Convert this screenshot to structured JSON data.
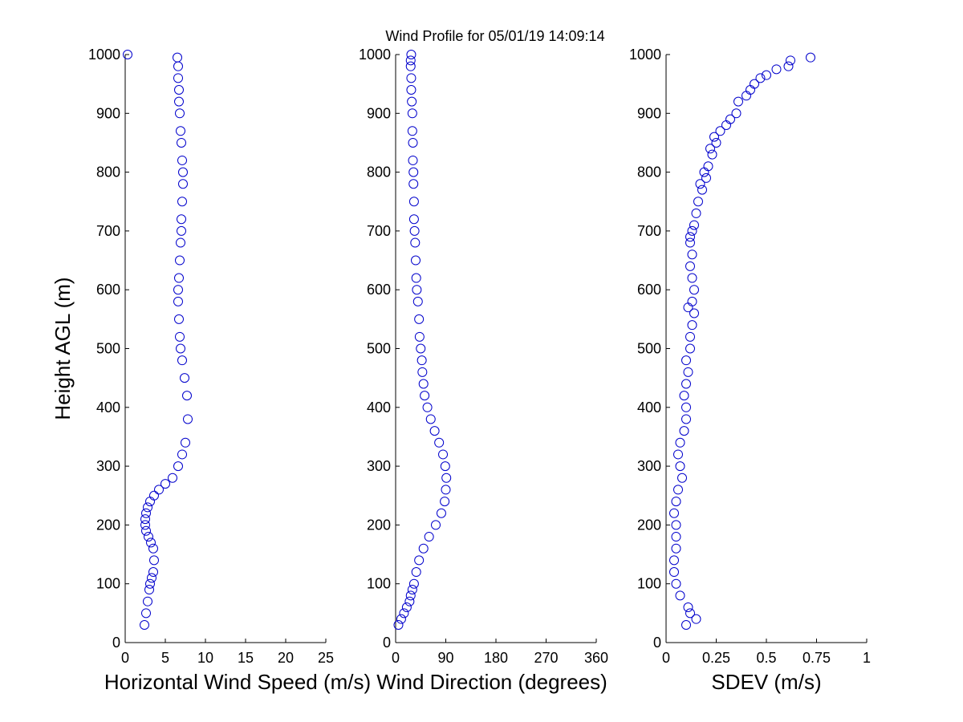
{
  "title": "Wind Profile for  05/01/19 14:09:14",
  "colors": {
    "marker": "#0000cc",
    "axis": "#000000"
  },
  "chart_data": [
    {
      "type": "scatter",
      "xlabel": "Horizontal Wind Speed (m/s)",
      "ylabel": "Height AGL (m)",
      "xlim": [
        0,
        25
      ],
      "ylim": [
        0,
        1000
      ],
      "xticks": [
        0,
        5,
        10,
        15,
        20,
        25
      ],
      "yticks": [
        0,
        100,
        200,
        300,
        400,
        500,
        600,
        700,
        800,
        900,
        1000
      ],
      "grid": false,
      "series": [
        {
          "x": [
            2.4,
            2.6,
            2.8,
            3.0,
            3.1,
            3.3,
            3.5,
            3.6,
            3.5,
            3.2,
            2.9,
            2.6,
            2.5,
            2.5,
            2.6,
            2.8,
            3.1,
            3.6,
            4.2,
            5.0,
            5.9,
            6.6,
            7.1,
            7.5,
            7.8,
            7.7,
            7.4,
            7.1,
            6.9,
            6.8,
            6.7,
            6.6,
            6.6,
            6.7,
            6.8,
            6.9,
            7.0,
            7.0,
            7.1,
            7.2,
            7.2,
            7.1,
            7.0,
            6.9,
            6.8,
            6.7,
            6.7,
            6.6,
            6.6,
            6.5,
            0.3
          ],
          "y": [
            30,
            50,
            70,
            90,
            100,
            110,
            120,
            140,
            160,
            170,
            180,
            190,
            200,
            210,
            220,
            230,
            240,
            250,
            260,
            270,
            280,
            300,
            320,
            340,
            380,
            420,
            450,
            480,
            500,
            520,
            550,
            580,
            600,
            620,
            650,
            680,
            700,
            720,
            750,
            780,
            800,
            820,
            850,
            870,
            900,
            920,
            940,
            960,
            980,
            995,
            1000
          ]
        }
      ]
    },
    {
      "type": "scatter",
      "xlabel": "Wind Direction (degrees)",
      "ylabel": "",
      "xlim": [
        0,
        360
      ],
      "ylim": [
        0,
        1000
      ],
      "xticks": [
        0,
        90,
        180,
        270,
        360
      ],
      "yticks": [
        0,
        100,
        200,
        300,
        400,
        500,
        600,
        700,
        800,
        900,
        1000
      ],
      "grid": false,
      "series": [
        {
          "x": [
            5,
            10,
            15,
            20,
            25,
            27,
            30,
            33,
            37,
            42,
            50,
            60,
            72,
            82,
            88,
            90,
            91,
            89,
            85,
            78,
            70,
            63,
            57,
            52,
            50,
            48,
            47,
            45,
            43,
            42,
            40,
            38,
            37,
            36,
            35,
            34,
            33,
            33,
            32,
            32,
            31,
            31,
            30,
            30,
            29,
            28,
            28,
            27,
            27,
            28
          ],
          "y": [
            30,
            40,
            50,
            60,
            70,
            80,
            90,
            100,
            120,
            140,
            160,
            180,
            200,
            220,
            240,
            260,
            280,
            300,
            320,
            340,
            360,
            380,
            400,
            420,
            440,
            460,
            480,
            500,
            520,
            550,
            580,
            600,
            620,
            650,
            680,
            700,
            720,
            750,
            780,
            800,
            820,
            850,
            870,
            900,
            920,
            940,
            960,
            980,
            990,
            1000
          ]
        }
      ]
    },
    {
      "type": "scatter",
      "xlabel": "SDEV  (m/s)",
      "ylabel": "",
      "xlim": [
        0,
        1
      ],
      "ylim": [
        0,
        1000
      ],
      "xticks": [
        0,
        0.25,
        0.5,
        0.75,
        1
      ],
      "tick_labels": [
        "0",
        "0.25",
        "0.5",
        "0.75",
        "1"
      ],
      "yticks": [
        0,
        100,
        200,
        300,
        400,
        500,
        600,
        700,
        800,
        900,
        1000
      ],
      "grid": false,
      "series": [
        {
          "x": [
            0.1,
            0.15,
            0.12,
            0.11,
            0.07,
            0.05,
            0.04,
            0.04,
            0.05,
            0.05,
            0.05,
            0.04,
            0.05,
            0.06,
            0.08,
            0.07,
            0.06,
            0.07,
            0.09,
            0.1,
            0.1,
            0.09,
            0.1,
            0.11,
            0.1,
            0.12,
            0.12,
            0.13,
            0.14,
            0.13,
            0.14,
            0.13,
            0.12,
            0.13,
            0.11,
            0.12,
            0.13,
            0.12,
            0.14,
            0.15,
            0.16,
            0.18,
            0.17,
            0.2,
            0.19,
            0.21,
            0.23,
            0.22,
            0.25,
            0.27,
            0.24,
            0.3,
            0.32,
            0.35,
            0.36,
            0.4,
            0.42,
            0.44,
            0.47,
            0.5,
            0.55,
            0.61,
            0.62,
            0.72
          ],
          "y": [
            30,
            40,
            50,
            60,
            80,
            100,
            120,
            140,
            160,
            180,
            200,
            220,
            240,
            260,
            280,
            300,
            320,
            340,
            360,
            380,
            400,
            420,
            440,
            460,
            480,
            500,
            520,
            540,
            560,
            580,
            600,
            620,
            640,
            660,
            570,
            680,
            700,
            690,
            710,
            730,
            750,
            770,
            780,
            790,
            800,
            810,
            830,
            840,
            850,
            870,
            860,
            880,
            890,
            900,
            920,
            930,
            940,
            950,
            960,
            965,
            975,
            980,
            990,
            995
          ]
        }
      ]
    }
  ]
}
